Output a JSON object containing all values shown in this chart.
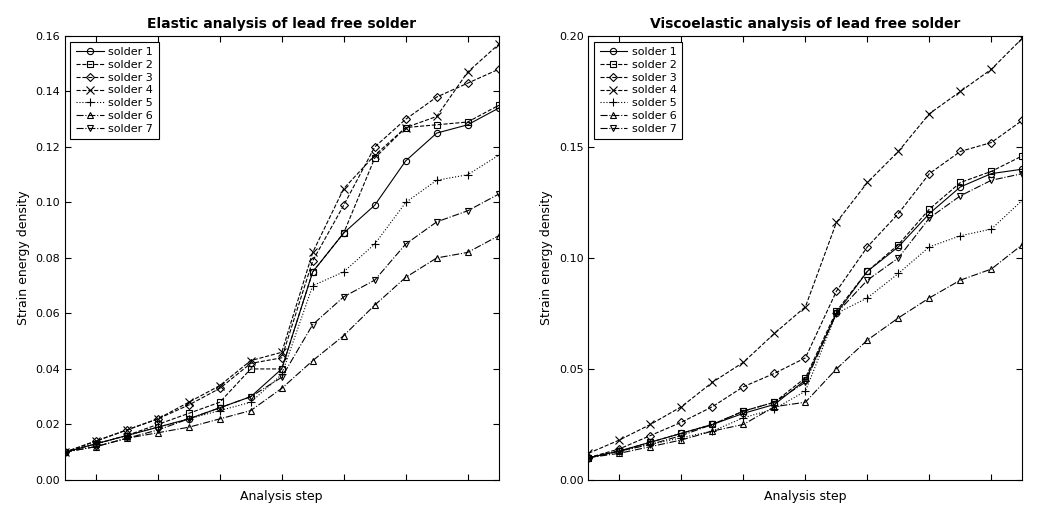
{
  "elastic_title": "Elastic analysis of lead free solder",
  "viscoelastic_title": "Viscoelastic analysis of lead free solder",
  "xlabel": "Analysis step",
  "ylabel": "Strain energy density",
  "elastic_ylim": [
    0,
    0.16
  ],
  "viscoelastic_ylim": [
    0,
    0.2
  ],
  "elastic_yticks": [
    0,
    0.02,
    0.04,
    0.06,
    0.08,
    0.1,
    0.12,
    0.14,
    0.16
  ],
  "viscoelastic_yticks": [
    0,
    0.05,
    0.1,
    0.15,
    0.2
  ],
  "series_labels": [
    "solder 1",
    "solder 2",
    "solder 3",
    "solder 4",
    "solder 5",
    "solder 6",
    "solder 7"
  ],
  "elastic_data": {
    "solder1": [
      0.01,
      0.013,
      0.016,
      0.019,
      0.022,
      0.026,
      0.03,
      0.04,
      0.075,
      0.089,
      0.099,
      0.115,
      0.125,
      0.128,
      0.134
    ],
    "solder2": [
      0.01,
      0.013,
      0.016,
      0.02,
      0.024,
      0.028,
      0.04,
      0.04,
      0.075,
      0.089,
      0.116,
      0.127,
      0.128,
      0.129,
      0.135
    ],
    "solder3": [
      0.01,
      0.014,
      0.018,
      0.022,
      0.027,
      0.033,
      0.042,
      0.044,
      0.079,
      0.099,
      0.12,
      0.13,
      0.138,
      0.143,
      0.148
    ],
    "solder4": [
      0.01,
      0.014,
      0.018,
      0.022,
      0.028,
      0.034,
      0.043,
      0.046,
      0.082,
      0.105,
      0.117,
      0.127,
      0.131,
      0.147,
      0.157
    ],
    "solder5": [
      0.01,
      0.013,
      0.016,
      0.019,
      0.022,
      0.025,
      0.028,
      0.038,
      0.07,
      0.075,
      0.085,
      0.1,
      0.108,
      0.11,
      0.117
    ],
    "solder6": [
      0.01,
      0.012,
      0.015,
      0.017,
      0.019,
      0.022,
      0.025,
      0.033,
      0.043,
      0.052,
      0.063,
      0.073,
      0.08,
      0.082,
      0.088
    ],
    "solder7": [
      0.01,
      0.012,
      0.015,
      0.018,
      0.022,
      0.026,
      0.03,
      0.037,
      0.056,
      0.066,
      0.072,
      0.085,
      0.093,
      0.097,
      0.103
    ]
  },
  "viscoelastic_data": {
    "solder1": [
      0.01,
      0.013,
      0.017,
      0.021,
      0.025,
      0.03,
      0.034,
      0.045,
      0.075,
      0.094,
      0.105,
      0.12,
      0.132,
      0.138,
      0.14
    ],
    "solder2": [
      0.01,
      0.013,
      0.017,
      0.021,
      0.025,
      0.031,
      0.035,
      0.046,
      0.076,
      0.094,
      0.106,
      0.122,
      0.134,
      0.139,
      0.146
    ],
    "solder3": [
      0.01,
      0.014,
      0.02,
      0.026,
      0.033,
      0.042,
      0.048,
      0.055,
      0.085,
      0.105,
      0.12,
      0.138,
      0.148,
      0.152,
      0.162
    ],
    "solder4": [
      0.012,
      0.018,
      0.025,
      0.033,
      0.044,
      0.053,
      0.066,
      0.078,
      0.116,
      0.134,
      0.148,
      0.165,
      0.175,
      0.185,
      0.199
    ],
    "solder5": [
      0.01,
      0.013,
      0.016,
      0.019,
      0.022,
      0.028,
      0.032,
      0.04,
      0.075,
      0.082,
      0.093,
      0.105,
      0.11,
      0.113,
      0.126
    ],
    "solder6": [
      0.01,
      0.012,
      0.015,
      0.018,
      0.022,
      0.025,
      0.033,
      0.035,
      0.05,
      0.063,
      0.073,
      0.082,
      0.09,
      0.095,
      0.106
    ],
    "solder7": [
      0.01,
      0.013,
      0.016,
      0.02,
      0.025,
      0.031,
      0.035,
      0.044,
      0.075,
      0.09,
      0.1,
      0.118,
      0.128,
      0.135,
      0.138
    ]
  },
  "background_color": "#ffffff",
  "title_fontsize": 10,
  "label_fontsize": 9,
  "legend_fontsize": 8,
  "tick_fontsize": 8
}
